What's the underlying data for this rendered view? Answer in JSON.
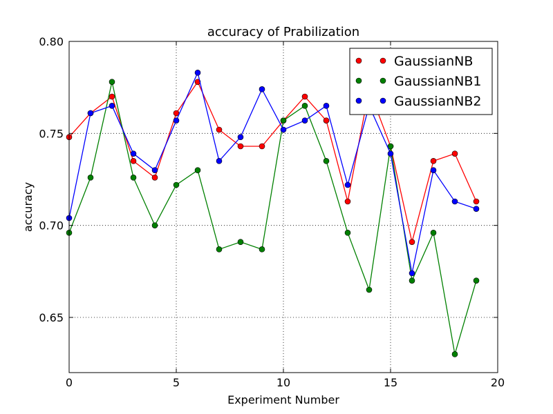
{
  "chart_data": {
    "type": "line",
    "title": "accuracy of Prabilization",
    "xlabel": "Experiment Number",
    "ylabel": "accuracy",
    "xlim": [
      0,
      20
    ],
    "ylim": [
      0.62,
      0.8
    ],
    "xticks": [
      0,
      5,
      10,
      15,
      20
    ],
    "yticks": [
      0.65,
      0.7,
      0.75,
      0.8
    ],
    "xtick_labels": [
      "0",
      "5",
      "10",
      "15",
      "20"
    ],
    "ytick_labels": [
      "0.65",
      "0.70",
      "0.75",
      "0.80"
    ],
    "grid": true,
    "legend_position": "top-right",
    "x": [
      0,
      1,
      2,
      3,
      4,
      5,
      6,
      7,
      8,
      9,
      10,
      11,
      12,
      13,
      14,
      15,
      16,
      17,
      18,
      19
    ],
    "series": [
      {
        "name": "GaussianNB",
        "color": "#ff0000",
        "values": [
          0.748,
          0.761,
          0.77,
          0.735,
          0.726,
          0.761,
          0.778,
          0.752,
          0.743,
          0.743,
          0.757,
          0.77,
          0.757,
          0.713,
          0.774,
          0.743,
          0.691,
          0.735,
          0.739,
          0.713
        ]
      },
      {
        "name": "GaussianNB1",
        "color": "#008000",
        "values": [
          0.696,
          0.726,
          0.778,
          0.726,
          0.7,
          0.722,
          0.73,
          0.687,
          0.691,
          0.687,
          0.757,
          0.765,
          0.735,
          0.696,
          0.665,
          0.743,
          0.67,
          0.696,
          0.63,
          0.67
        ]
      },
      {
        "name": "GaussianNB2",
        "color": "#0000ff",
        "values": [
          0.704,
          0.761,
          0.765,
          0.739,
          0.73,
          0.757,
          0.783,
          0.735,
          0.748,
          0.774,
          0.752,
          0.757,
          0.765,
          0.722,
          0.765,
          0.739,
          0.674,
          0.73,
          0.713,
          0.709
        ]
      }
    ]
  }
}
